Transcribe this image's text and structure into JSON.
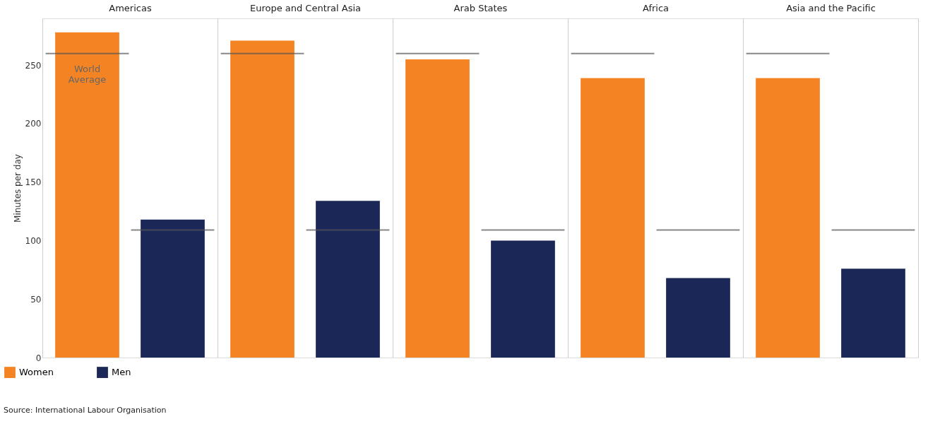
{
  "chart_data": {
    "type": "bar",
    "categories": [
      "Americas",
      "Europe and Central Asia",
      "Arab States",
      "Africa",
      "Asia and the Pacific"
    ],
    "ylabel": "Minutes per day",
    "ylim": [
      0,
      290
    ],
    "yticks": [
      0,
      50,
      100,
      150,
      200,
      250
    ],
    "grid": "x",
    "legend": "bottom left",
    "series": [
      {
        "name": "Women",
        "color": "#f48423",
        "values": [
          278,
          271,
          255,
          239,
          239
        ]
      },
      {
        "name": "Men",
        "color": "#1b2857",
        "values": [
          118,
          134,
          100,
          68,
          76
        ]
      }
    ],
    "ref_lines": [
      {
        "axis": "y",
        "value": 260,
        "label": "World Average",
        "color": "#555555"
      },
      {
        "axis": "y",
        "value": 109,
        "color": "#555555"
      }
    ],
    "annotations": [
      "Source: International Labour Organisation"
    ]
  }
}
